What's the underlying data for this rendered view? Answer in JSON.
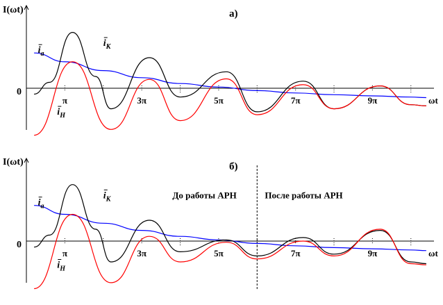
{
  "chart_data": [
    {
      "type": "line",
      "title": "а)",
      "ylabel": "I(ωt)",
      "xlabel": "ωt",
      "origin_label": "0",
      "x_unit": "π",
      "xlim": [
        0.0,
        10.6
      ],
      "ylim": [
        -1.0,
        1.15
      ],
      "x_tick_labels": [
        {
          "x": 1,
          "label": "π"
        },
        {
          "x": 3,
          "label": "3π"
        },
        {
          "x": 5,
          "label": "5π"
        },
        {
          "x": 7,
          "label": "7π"
        },
        {
          "x": 9,
          "label": "9π"
        }
      ],
      "minor_ticks": [
        2,
        4,
        6,
        8,
        10
      ],
      "series": [
        {
          "name": "iа",
          "color": "#0000ff",
          "x": [
            0.2,
            1,
            2,
            3,
            4,
            5,
            6,
            7,
            8,
            9,
            10,
            10.4
          ],
          "y": [
            0.6,
            0.45,
            0.3,
            0.18,
            0.08,
            0.02,
            -0.04,
            -0.08,
            -0.11,
            -0.13,
            -0.15,
            -0.16
          ]
        },
        {
          "name": "iК",
          "color": "#000000",
          "x": [
            0.2,
            0.6,
            1.2,
            1.8,
            2.2,
            3.2,
            4.0,
            5.2,
            6.0,
            7.2,
            8.0,
            9.2,
            10.0,
            10.4
          ],
          "y": [
            -0.1,
            0.1,
            0.95,
            0.2,
            -0.35,
            0.52,
            -0.15,
            0.28,
            -0.4,
            0.12,
            -0.35,
            0.04,
            -0.28,
            -0.3
          ]
        },
        {
          "name": "iН",
          "color": "#ff0000",
          "x": [
            0.2,
            1.2,
            2.2,
            3.2,
            4.0,
            5.2,
            6.0,
            7.2,
            8.0,
            9.2,
            10.0,
            10.4
          ],
          "y": [
            -0.8,
            0.45,
            -0.7,
            0.15,
            -0.55,
            0.16,
            -0.45,
            0.06,
            -0.35,
            0.04,
            -0.28,
            -0.3
          ]
        }
      ],
      "curve_labels": [
        {
          "series": "iК",
          "text": "i",
          "sub": "К",
          "x": 2.0,
          "y": 0.72
        },
        {
          "series": "iа",
          "text": "i",
          "sub": "а",
          "x": 0.3,
          "y": 0.6
        },
        {
          "series": "iН",
          "text": "i",
          "sub": "Н",
          "x": 0.8,
          "y": -0.45
        }
      ]
    },
    {
      "type": "line",
      "title": "б)",
      "ylabel": "I(ωt)",
      "xlabel": "ωt",
      "origin_label": "0",
      "x_unit": "π",
      "xlim": [
        0.0,
        10.6
      ],
      "ylim": [
        -1.0,
        1.15
      ],
      "x_tick_labels": [
        {
          "x": 1,
          "label": "π"
        },
        {
          "x": 3,
          "label": "3π"
        },
        {
          "x": 5,
          "label": "5π"
        },
        {
          "x": 7,
          "label": "7π"
        },
        {
          "x": 9,
          "label": "9π"
        }
      ],
      "minor_ticks": [
        2,
        4,
        6,
        8,
        10
      ],
      "annotations": [
        {
          "text": "До работы АРН",
          "x": 3.8,
          "y": 0.72
        },
        {
          "text": "После работы АРН",
          "x": 6.2,
          "y": 0.72
        }
      ],
      "divider_x": 6.0,
      "series": [
        {
          "name": "iа",
          "color": "#0000ff",
          "x": [
            0.2,
            1,
            2,
            3,
            4,
            5,
            6,
            7,
            8,
            9,
            10,
            10.4
          ],
          "y": [
            0.6,
            0.45,
            0.3,
            0.18,
            0.08,
            0.02,
            -0.04,
            -0.08,
            -0.11,
            -0.13,
            -0.15,
            -0.16
          ]
        },
        {
          "name": "iК",
          "color": "#000000",
          "x": [
            0.2,
            0.6,
            1.2,
            1.8,
            2.2,
            3.2,
            4.0,
            5.2,
            6.0,
            7.2,
            8.0,
            9.2,
            10.0,
            10.4
          ],
          "y": [
            -0.1,
            0.1,
            0.95,
            0.2,
            -0.35,
            0.35,
            -0.18,
            0.02,
            -0.25,
            0.06,
            -0.22,
            0.18,
            -0.35,
            -0.38
          ]
        },
        {
          "name": "iН",
          "color": "#ff0000",
          "x": [
            0.2,
            1.2,
            2.2,
            3.2,
            4.0,
            5.2,
            6.0,
            7.2,
            8.0,
            9.2,
            10.0,
            10.4
          ],
          "y": [
            -0.8,
            0.45,
            -0.7,
            0.08,
            -0.35,
            -0.02,
            -0.3,
            0.0,
            -0.25,
            0.2,
            -0.38,
            -0.4
          ]
        }
      ],
      "curve_labels": [
        {
          "series": "iК",
          "text": "i",
          "sub": "К",
          "x": 2.0,
          "y": 0.72
        },
        {
          "series": "iа",
          "text": "i",
          "sub": "а",
          "x": 0.3,
          "y": 0.6
        },
        {
          "series": "iН",
          "text": "i",
          "sub": "Н",
          "x": 0.8,
          "y": -0.45
        }
      ]
    }
  ]
}
